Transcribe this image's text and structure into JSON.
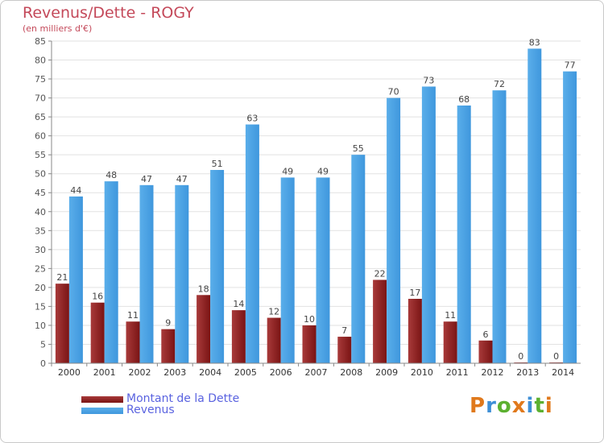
{
  "colors": {
    "dette": "#7a1414",
    "dette_light": "#a83a3a",
    "revenus": "#3f97dd",
    "revenus_light": "#5aaeea",
    "title": "#c4495a",
    "legend_text": "#5a63e0",
    "logo_p": "#e0791c",
    "logo_r": "#3e8fd6",
    "logo_o": "#5cb030",
    "logo_x": "#e0791c",
    "logo_i": "#3e8fd6",
    "logo_t": "#5cb030",
    "logo_i2": "#e0791c"
  },
  "brand": {
    "letters": [
      "P",
      "r",
      "o",
      "x",
      "i",
      "t",
      "i"
    ]
  },
  "chart_data": {
    "type": "bar",
    "title": "Revenus/Dette - ROGY",
    "subtitle": "(en milliers d'€)",
    "categories": [
      "2000",
      "2001",
      "2002",
      "2003",
      "2004",
      "2005",
      "2006",
      "2007",
      "2008",
      "2009",
      "2010",
      "2011",
      "2012",
      "2013",
      "2014"
    ],
    "series": [
      {
        "name": "Montant de la Dette",
        "values": [
          21,
          16,
          11,
          9,
          18,
          14,
          12,
          10,
          7,
          22,
          17,
          11,
          6,
          0,
          0
        ]
      },
      {
        "name": "Revenus",
        "values": [
          44,
          48,
          47,
          47,
          51,
          63,
          49,
          49,
          55,
          70,
          73,
          68,
          72,
          83,
          77
        ]
      }
    ],
    "ylim": [
      0,
      85
    ],
    "yticks": [
      0,
      5,
      10,
      15,
      20,
      25,
      30,
      35,
      40,
      45,
      50,
      55,
      60,
      65,
      70,
      75,
      80,
      85
    ],
    "grid": true,
    "legend_position": "bottom-left"
  }
}
